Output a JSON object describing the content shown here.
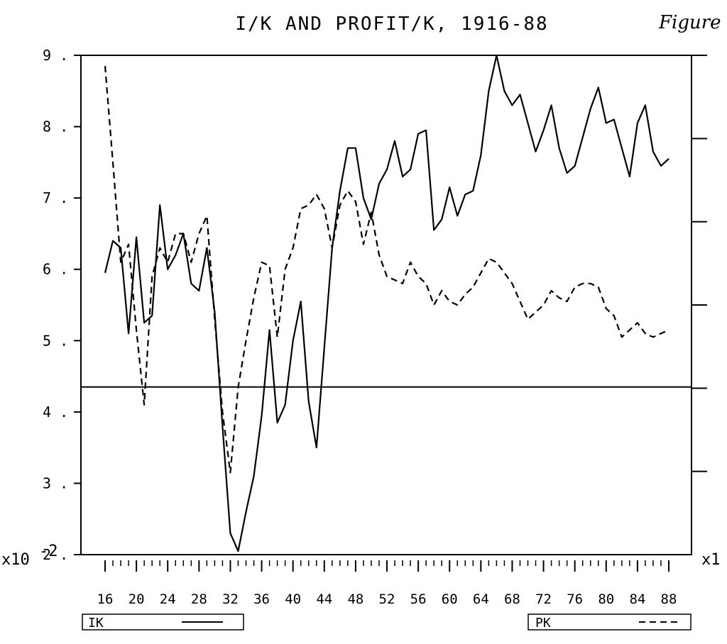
{
  "chart_data": {
    "type": "line",
    "title": "I/K AND PROFIT/K, 1916-88",
    "annotation": "Figure",
    "y_multiplier_left": "x10",
    "y_exponent_left": "-2",
    "y_multiplier_right": "x1",
    "ylim": [
      2,
      9
    ],
    "y_ticks": [
      "9",
      "8",
      "7",
      "6",
      "5",
      "4",
      "3",
      "2"
    ],
    "xlim": [
      1916,
      1988
    ],
    "x_tick_labels": [
      "16",
      "20",
      "24",
      "28",
      "32",
      "36",
      "40",
      "44",
      "48",
      "52",
      "56",
      "60",
      "64",
      "68",
      "72",
      "76",
      "80",
      "84",
      "88"
    ],
    "reference_line_y": 4.35,
    "series": [
      {
        "name": "IK",
        "style": "solid",
        "x": [
          1916,
          1917,
          1918,
          1919,
          1920,
          1921,
          1922,
          1923,
          1924,
          1925,
          1926,
          1927,
          1928,
          1929,
          1930,
          1931,
          1932,
          1933,
          1934,
          1935,
          1936,
          1937,
          1938,
          1939,
          1940,
          1941,
          1942,
          1943,
          1944,
          1945,
          1946,
          1947,
          1948,
          1949,
          1950,
          1951,
          1952,
          1953,
          1954,
          1955,
          1956,
          1957,
          1958,
          1959,
          1960,
          1961,
          1962,
          1963,
          1964,
          1965,
          1966,
          1967,
          1968,
          1969,
          1970,
          1971,
          1972,
          1973,
          1974,
          1975,
          1976,
          1977,
          1978,
          1979,
          1980,
          1981,
          1982,
          1983,
          1984,
          1985,
          1986,
          1987,
          1988
        ],
        "values": [
          5.95,
          6.4,
          6.3,
          5.1,
          6.45,
          5.25,
          5.35,
          6.9,
          6.0,
          6.2,
          6.5,
          5.8,
          5.7,
          6.3,
          5.4,
          3.8,
          2.3,
          2.05,
          2.6,
          3.1,
          3.95,
          5.15,
          3.85,
          4.1,
          5.0,
          5.55,
          4.15,
          3.5,
          4.9,
          6.3,
          7.1,
          7.7,
          7.7,
          7.0,
          6.7,
          7.2,
          7.4,
          7.8,
          7.3,
          7.4,
          7.9,
          7.95,
          6.55,
          6.7,
          7.15,
          6.75,
          7.05,
          7.1,
          7.6,
          8.5,
          9.0,
          8.5,
          8.3,
          8.45,
          8.05,
          7.65,
          7.95,
          8.3,
          7.7,
          7.35,
          7.45,
          7.85,
          8.25,
          8.55,
          8.05,
          8.1,
          7.7,
          7.3,
          8.05,
          8.3,
          7.65,
          7.45,
          7.55
        ]
      },
      {
        "name": "PK",
        "style": "dashed",
        "x": [
          1916,
          1917,
          1918,
          1919,
          1920,
          1921,
          1922,
          1923,
          1924,
          1925,
          1926,
          1927,
          1928,
          1929,
          1930,
          1931,
          1932,
          1933,
          1934,
          1935,
          1936,
          1937,
          1938,
          1939,
          1940,
          1941,
          1942,
          1943,
          1944,
          1945,
          1946,
          1947,
          1948,
          1949,
          1950,
          1951,
          1952,
          1953,
          1954,
          1955,
          1956,
          1957,
          1958,
          1959,
          1960,
          1961,
          1962,
          1963,
          1964,
          1965,
          1966,
          1967,
          1968,
          1969,
          1970,
          1971,
          1972,
          1973,
          1974,
          1975,
          1976,
          1977,
          1978,
          1979,
          1980,
          1981,
          1982,
          1983,
          1984,
          1985,
          1986,
          1987,
          1988
        ],
        "values": [
          8.85,
          7.5,
          6.1,
          6.35,
          5.15,
          4.1,
          5.9,
          6.3,
          6.1,
          6.5,
          6.5,
          6.1,
          6.5,
          6.75,
          5.3,
          4.0,
          3.15,
          4.35,
          5.0,
          5.6,
          6.1,
          6.05,
          5.05,
          6.0,
          6.3,
          6.85,
          6.9,
          7.05,
          6.85,
          6.3,
          6.9,
          7.1,
          6.95,
          6.35,
          6.8,
          6.2,
          5.9,
          5.85,
          5.8,
          6.1,
          5.9,
          5.8,
          5.5,
          5.7,
          5.55,
          5.5,
          5.65,
          5.75,
          5.95,
          6.15,
          6.1,
          5.95,
          5.8,
          5.55,
          5.3,
          5.4,
          5.5,
          5.7,
          5.6,
          5.55,
          5.75,
          5.8,
          5.8,
          5.75,
          5.45,
          5.35,
          5.05,
          5.15,
          5.25,
          5.1,
          5.05,
          5.1,
          5.15
        ]
      }
    ],
    "legend": [
      {
        "label": "IK",
        "style": "solid"
      },
      {
        "label": "PK",
        "style": "dashed"
      }
    ]
  },
  "colors": {
    "ink": "#000000",
    "background": "#ffffff"
  }
}
